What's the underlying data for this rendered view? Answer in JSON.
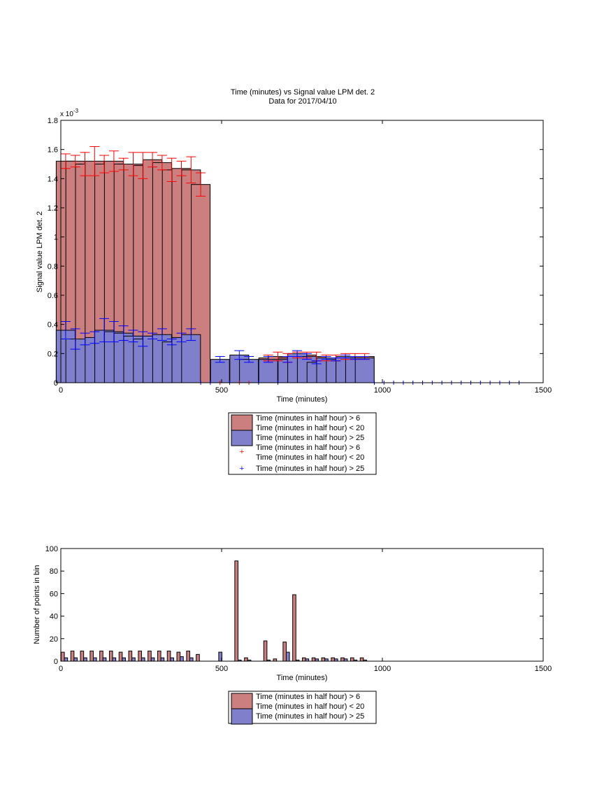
{
  "colors": {
    "red_fill": "#cc7f7f",
    "blue_fill": "#7f7fcc",
    "red_err": "#ff0000",
    "blue_err": "#0000ff"
  },
  "chart_data": [
    {
      "type": "bar",
      "title": "Time (minutes) vs Signal value LPM det. 2",
      "subtitle": "Data for 2017/04/10",
      "xlabel": "Time (minutes)",
      "ylabel": "Signal value LPM det. 2",
      "y_exponent_label": "x 10",
      "y_exponent_power": "-3",
      "xlim": [
        0,
        1500
      ],
      "ylim": [
        0,
        1.8
      ],
      "xticks": [
        "0",
        "500",
        "1000",
        "1500"
      ],
      "yticks": [
        "0",
        "0.2",
        "0.4",
        "0.6",
        "0.8",
        "1",
        "1.2",
        "1.4",
        "1.6",
        "1.8"
      ],
      "bar_width": 27,
      "legend": {
        "position": "below",
        "entries": [
          "Time (minutes in half hour) > 6",
          "Time (minutes in half hour) < 20",
          "Time (minutes in half hour) > 25",
          "Time (minutes in half hour) > 6",
          "Time (minutes in half hour) < 20",
          "Time (minutes in half hour) > 25"
        ]
      },
      "series": [
        {
          "name": "Time (minutes in half hour) > 6 & < 20",
          "color": "red",
          "x": [
            15,
            45,
            75,
            105,
            135,
            165,
            195,
            225,
            255,
            285,
            315,
            345,
            375,
            405,
            435,
            645,
            675,
            705,
            735,
            765,
            795,
            825,
            855,
            885,
            915,
            945
          ],
          "values": [
            1.52,
            1.52,
            1.5,
            1.52,
            1.5,
            1.52,
            1.5,
            1.5,
            1.49,
            1.53,
            1.51,
            1.46,
            1.47,
            1.46,
            1.36,
            0.17,
            0.18,
            0.17,
            0.19,
            0.19,
            0.18,
            0.17,
            0.17,
            0.18,
            0.18,
            0.18
          ],
          "err": [
            0.05,
            0.04,
            0.08,
            0.1,
            0.06,
            0.07,
            0.04,
            0.08,
            0.09,
            0.05,
            0.05,
            0.08,
            0.05,
            0.09,
            0.08,
            0.02,
            0.03,
            0.03,
            0.02,
            0.02,
            0.03,
            0.02,
            0.02,
            0.02,
            0.02,
            0.02
          ]
        },
        {
          "name": "Time (minutes in half hour) > 25",
          "color": "blue",
          "x": [
            15,
            45,
            75,
            105,
            135,
            165,
            195,
            225,
            255,
            285,
            315,
            345,
            375,
            405,
            495,
            555,
            585,
            645,
            705,
            735,
            765,
            795,
            825,
            855,
            885,
            915,
            945
          ],
          "values": [
            0.36,
            0.3,
            0.3,
            0.31,
            0.36,
            0.35,
            0.34,
            0.32,
            0.3,
            0.32,
            0.33,
            0.28,
            0.31,
            0.33,
            0.16,
            0.19,
            0.16,
            0.16,
            0.16,
            0.2,
            0.18,
            0.14,
            0.17,
            0.16,
            0.18,
            0.17,
            0.17
          ],
          "err": [
            0.06,
            0.07,
            0.04,
            0.04,
            0.08,
            0.07,
            0.05,
            0.04,
            0.05,
            0.02,
            0.04,
            0.02,
            0.03,
            0.04,
            0.02,
            0.03,
            0.02,
            0.02,
            0.02,
            0.02,
            0.02,
            0.01,
            0.01,
            0.01,
            0.01,
            0.01,
            0.01
          ]
        },
        {
          "name": "Time (minutes in half hour) > 6 & < 20 (markers)",
          "color": "red",
          "x": [
            495,
            555,
            585
          ],
          "values": [
            0,
            0,
            0
          ]
        },
        {
          "name": "Time (minutes in half hour) > 25 (markers)",
          "color": "blue",
          "x": [
            435,
            465,
            525,
            615,
            675,
            975,
            1005,
            1035,
            1065,
            1095,
            1125,
            1155,
            1185,
            1215,
            1245,
            1275,
            1305,
            1335,
            1365,
            1395,
            1425
          ],
          "values": [
            0,
            0,
            0,
            0,
            0,
            0,
            0,
            0,
            0,
            0,
            0,
            0,
            0,
            0,
            0,
            0,
            0,
            0,
            0,
            0,
            0
          ]
        }
      ]
    },
    {
      "type": "bar",
      "xlabel": "Time (minutes)",
      "ylabel": "Number of points in bin",
      "xlim": [
        0,
        1500
      ],
      "ylim": [
        0,
        100
      ],
      "xticks": [
        "0",
        "500",
        "1000",
        "1500"
      ],
      "yticks": [
        "0",
        "20",
        "40",
        "60",
        "80",
        "100"
      ],
      "bar_width": 10,
      "legend": {
        "position": "below",
        "entries": [
          "Time (minutes in half hour) > 6",
          "Time (minutes in half hour) < 20",
          "Time (minutes in half hour) > 25"
        ]
      },
      "series": [
        {
          "name": "Time (minutes in half hour) > 6 & < 20",
          "color": "red",
          "x": [
            6,
            36,
            66,
            96,
            126,
            156,
            186,
            216,
            246,
            276,
            306,
            336,
            366,
            396,
            426,
            546,
            576,
            636,
            666,
            696,
            726,
            756,
            786,
            816,
            846,
            876,
            906,
            936
          ],
          "values": [
            8,
            9,
            9,
            9,
            9,
            9,
            8,
            9,
            9,
            9,
            9,
            9,
            8,
            9,
            6,
            89,
            3,
            18,
            2,
            17,
            59,
            3,
            3,
            3,
            3,
            3,
            3,
            3
          ]
        },
        {
          "name": "Time (minutes in half hour) > 25",
          "color": "blue",
          "x": [
            16,
            46,
            76,
            106,
            136,
            166,
            196,
            226,
            256,
            286,
            316,
            346,
            376,
            406,
            496,
            556,
            586,
            646,
            706,
            736,
            766,
            796,
            826,
            856,
            886,
            916,
            946
          ],
          "values": [
            3,
            3,
            3,
            3,
            3,
            3,
            3,
            3,
            3,
            3,
            3,
            3,
            4,
            3,
            8,
            1,
            1,
            1,
            8,
            1,
            2,
            2,
            2,
            2,
            2,
            1,
            1
          ]
        }
      ]
    }
  ]
}
